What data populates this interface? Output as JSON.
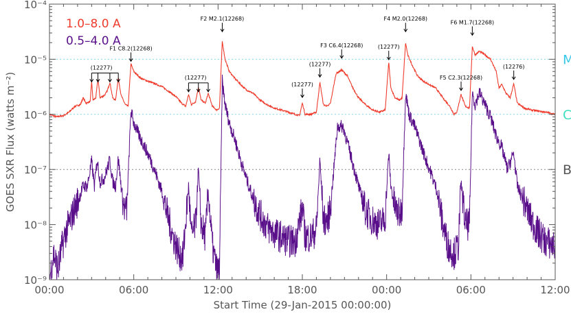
{
  "chart_data": {
    "type": "line",
    "xlabel": "Start Time (29-Jan-2015 00:00:00)",
    "ylabel": "GOES SXR Flux (watts m⁻²)",
    "x_unit": "hours since 29-Jan-2015 00:00",
    "xlim": [
      0,
      36
    ],
    "ylim": [
      1e-09,
      0.0001
    ],
    "yscale": "log",
    "x_ticks": [
      "00:00",
      "06:00",
      "12:00",
      "18:00",
      "00:00",
      "06:00",
      "12:00"
    ],
    "y_ticks": [
      "10⁻⁹",
      "10⁻⁸",
      "10⁻⁷",
      "10⁻⁶",
      "10⁻⁵",
      "10⁻⁴"
    ],
    "legend": [
      {
        "label": "1.0–8.0 A",
        "color": "#ef3b2c"
      },
      {
        "label": "0.5–4.0 A",
        "color": "#5a0f8a"
      }
    ],
    "class_levels": [
      {
        "label": "M",
        "value": 1e-05,
        "color": "#38c8e8",
        "line_color": "#7fd8ec"
      },
      {
        "label": "C",
        "value": 1e-06,
        "color": "#3fe0c0",
        "line_color": "#7fd8ec"
      },
      {
        "label": "B",
        "value": 1e-07,
        "color": "#555555",
        "line_color": "#888888"
      }
    ],
    "series": [
      {
        "name": "1.0–8.0 A",
        "color": "#ef3b2c",
        "points": [
          [
            0.0,
            1e-06
          ],
          [
            0.5,
            9e-07
          ],
          [
            1.0,
            9.5e-07
          ],
          [
            1.4,
            1.1e-06
          ],
          [
            1.8,
            1.4e-06
          ],
          [
            2.2,
            1.5e-06
          ],
          [
            2.4,
            2e-06
          ],
          [
            2.6,
            1.6e-06
          ],
          [
            2.9,
            1.7e-06
          ],
          [
            3.0,
            4e-06
          ],
          [
            3.1,
            1.8e-06
          ],
          [
            3.3,
            2e-06
          ],
          [
            3.45,
            4.5e-06
          ],
          [
            3.6,
            2e-06
          ],
          [
            3.9,
            2.2e-06
          ],
          [
            4.1,
            2.6e-06
          ],
          [
            4.3,
            3.8e-06
          ],
          [
            4.5,
            2e-06
          ],
          [
            4.7,
            1.8e-06
          ],
          [
            4.9,
            4.6e-06
          ],
          [
            5.1,
            2.2e-06
          ],
          [
            5.4,
            1.5e-06
          ],
          [
            5.6,
            1.4e-06
          ],
          [
            5.8,
            8.2e-06
          ],
          [
            6.0,
            6e-06
          ],
          [
            6.5,
            4.5e-06
          ],
          [
            7.0,
            4e-06
          ],
          [
            7.5,
            3.6e-06
          ],
          [
            8.0,
            3.2e-06
          ],
          [
            8.5,
            2.6e-06
          ],
          [
            9.0,
            2.1e-06
          ],
          [
            9.4,
            1.6e-06
          ],
          [
            9.7,
            1.4e-06
          ],
          [
            9.9,
            2.3e-06
          ],
          [
            10.1,
            1.5e-06
          ],
          [
            10.4,
            1.7e-06
          ],
          [
            10.6,
            3.1e-06
          ],
          [
            10.8,
            1.8e-06
          ],
          [
            11.1,
            1.6e-06
          ],
          [
            11.3,
            2.4e-06
          ],
          [
            11.6,
            1.4e-06
          ],
          [
            11.9,
            1.2e-06
          ],
          [
            12.1,
            1.3e-06
          ],
          [
            12.3,
            2.1e-05
          ],
          [
            12.5,
            1e-05
          ],
          [
            12.8,
            6e-06
          ],
          [
            13.2,
            4.5e-06
          ],
          [
            13.6,
            3.5e-06
          ],
          [
            14.0,
            2.8e-06
          ],
          [
            14.5,
            2.4e-06
          ],
          [
            15.0,
            1.8e-06
          ],
          [
            15.5,
            1.5e-06
          ],
          [
            16.0,
            1.3e-06
          ],
          [
            16.5,
            1.2e-06
          ],
          [
            17.0,
            1.1e-06
          ],
          [
            17.5,
            1e-06
          ],
          [
            17.8,
            9.5e-07
          ],
          [
            18.0,
            1.6e-06
          ],
          [
            18.2,
            1e-06
          ],
          [
            18.6,
            1e-06
          ],
          [
            19.0,
            1.1e-06
          ],
          [
            19.25,
            3.8e-06
          ],
          [
            19.5,
            1.5e-06
          ],
          [
            19.8,
            1.4e-06
          ],
          [
            20.0,
            1.6e-06
          ],
          [
            20.4,
            5.5e-06
          ],
          [
            20.8,
            6.4e-06
          ],
          [
            21.2,
            5e-06
          ],
          [
            21.6,
            3e-06
          ],
          [
            22.0,
            2e-06
          ],
          [
            22.5,
            1.5e-06
          ],
          [
            23.0,
            1.2e-06
          ],
          [
            23.5,
            1.1e-06
          ],
          [
            23.9,
            1.2e-06
          ],
          [
            24.15,
            9e-06
          ],
          [
            24.3,
            3e-06
          ],
          [
            24.6,
            2e-06
          ],
          [
            24.9,
            1.8e-06
          ],
          [
            25.1,
            2e-06
          ],
          [
            25.35,
            2e-05
          ],
          [
            25.5,
            1.2e-05
          ],
          [
            25.8,
            8e-06
          ],
          [
            26.2,
            5e-06
          ],
          [
            26.6,
            4e-06
          ],
          [
            27.0,
            3.5e-06
          ],
          [
            27.5,
            3e-06
          ],
          [
            28.0,
            2e-06
          ],
          [
            28.5,
            1.4e-06
          ],
          [
            28.8,
            1e-06
          ],
          [
            29.0,
            1.1e-06
          ],
          [
            29.3,
            2.3e-06
          ],
          [
            29.6,
            1.4e-06
          ],
          [
            29.9,
            1.3e-06
          ],
          [
            30.1,
            1.7e-05
          ],
          [
            30.3,
            1.2e-05
          ],
          [
            30.6,
            1.4e-05
          ],
          [
            31.0,
            1.2e-05
          ],
          [
            31.4,
            1e-05
          ],
          [
            31.8,
            6e-06
          ],
          [
            32.0,
            3e-06
          ],
          [
            32.2,
            3.5e-06
          ],
          [
            32.5,
            2.4e-06
          ],
          [
            32.8,
            2e-06
          ],
          [
            33.05,
            3.6e-06
          ],
          [
            33.3,
            1.6e-06
          ],
          [
            33.8,
            1.3e-06
          ],
          [
            34.3,
            1.2e-06
          ],
          [
            34.8,
            1.15e-06
          ],
          [
            35.3,
            1.1e-06
          ],
          [
            36.0,
            1e-06
          ]
        ]
      },
      {
        "name": "0.5–4.0 A",
        "color": "#5a0f8a",
        "points": [
          [
            0.0,
            1e-09
          ],
          [
            0.3,
            3e-09
          ],
          [
            0.6,
            1.5e-09
          ],
          [
            0.9,
            4e-09
          ],
          [
            1.2,
            8e-09
          ],
          [
            1.5,
            1.2e-08
          ],
          [
            1.8,
            2e-08
          ],
          [
            2.1,
            3e-08
          ],
          [
            2.4,
            5e-08
          ],
          [
            2.7,
            5e-08
          ],
          [
            3.0,
            1.4e-07
          ],
          [
            3.2,
            5e-08
          ],
          [
            3.4,
            1.5e-07
          ],
          [
            3.6,
            6e-08
          ],
          [
            3.9,
            7e-08
          ],
          [
            4.1,
            1e-07
          ],
          [
            4.3,
            1.5e-07
          ],
          [
            4.5,
            6e-08
          ],
          [
            4.7,
            5e-08
          ],
          [
            4.9,
            1.6e-07
          ],
          [
            5.1,
            5e-08
          ],
          [
            5.3,
            2e-08
          ],
          [
            5.5,
            1.8e-08
          ],
          [
            5.8,
            1.2e-06
          ],
          [
            6.0,
            7e-07
          ],
          [
            6.4,
            4e-07
          ],
          [
            6.8,
            2.5e-07
          ],
          [
            7.2,
            1.5e-07
          ],
          [
            7.6,
            8e-08
          ],
          [
            8.0,
            4e-08
          ],
          [
            8.4,
            1.5e-08
          ],
          [
            8.8,
            6e-09
          ],
          [
            9.2,
            3e-09
          ],
          [
            9.5,
            2.5e-09
          ],
          [
            9.9,
            5e-08
          ],
          [
            10.1,
            6e-09
          ],
          [
            10.4,
            1e-08
          ],
          [
            10.6,
            1e-07
          ],
          [
            10.8,
            1e-08
          ],
          [
            11.1,
            6e-09
          ],
          [
            11.3,
            4e-08
          ],
          [
            11.6,
            4e-09
          ],
          [
            11.9,
            1.5e-09
          ],
          [
            12.1,
            1.5e-09
          ],
          [
            12.3,
            4e-06
          ],
          [
            12.5,
            1.5e-06
          ],
          [
            12.8,
            7e-07
          ],
          [
            13.2,
            3.5e-07
          ],
          [
            13.6,
            1.5e-07
          ],
          [
            14.0,
            7e-08
          ],
          [
            14.5,
            3e-08
          ],
          [
            15.0,
            1.5e-08
          ],
          [
            15.5,
            9e-09
          ],
          [
            16.0,
            7e-09
          ],
          [
            16.5,
            6e-09
          ],
          [
            17.0,
            5e-09
          ],
          [
            17.5,
            5e-09
          ],
          [
            18.0,
            2e-08
          ],
          [
            18.2,
            6e-09
          ],
          [
            18.6,
            6e-09
          ],
          [
            19.0,
            8e-09
          ],
          [
            19.25,
            1.5e-07
          ],
          [
            19.5,
            1.2e-08
          ],
          [
            19.8,
            1.2e-08
          ],
          [
            20.0,
            2e-08
          ],
          [
            20.5,
            6e-07
          ],
          [
            20.9,
            6e-07
          ],
          [
            21.3,
            2.5e-07
          ],
          [
            21.7,
            1e-07
          ],
          [
            22.1,
            4e-08
          ],
          [
            22.5,
            1.8e-08
          ],
          [
            23.0,
            1.2e-08
          ],
          [
            23.5,
            1e-08
          ],
          [
            23.9,
            1.3e-08
          ],
          [
            24.15,
            2e-07
          ],
          [
            24.3,
            5e-08
          ],
          [
            24.6,
            2e-08
          ],
          [
            24.9,
            1.5e-08
          ],
          [
            25.1,
            2e-08
          ],
          [
            25.35,
            2.5e-06
          ],
          [
            25.6,
            1e-06
          ],
          [
            26.0,
            6e-07
          ],
          [
            26.4,
            3e-07
          ],
          [
            26.8,
            1.5e-07
          ],
          [
            27.2,
            8e-08
          ],
          [
            27.6,
            4e-08
          ],
          [
            28.0,
            1e-08
          ],
          [
            28.4,
            4e-09
          ],
          [
            28.8,
            3e-09
          ],
          [
            29.1,
            4e-09
          ],
          [
            29.3,
            6e-08
          ],
          [
            29.6,
            1e-08
          ],
          [
            29.9,
            1e-08
          ],
          [
            30.1,
            2.5e-06
          ],
          [
            30.3,
            1.5e-06
          ],
          [
            30.6,
            2.5e-06
          ],
          [
            31.0,
            1.5e-06
          ],
          [
            31.4,
            9e-07
          ],
          [
            31.8,
            4e-07
          ],
          [
            32.2,
            2.5e-07
          ],
          [
            32.6,
            1e-07
          ],
          [
            33.05,
            2e-07
          ],
          [
            33.3,
            5e-08
          ],
          [
            33.8,
            2.5e-08
          ],
          [
            34.3,
            1.2e-08
          ],
          [
            34.8,
            7e-09
          ],
          [
            35.3,
            5e-09
          ],
          [
            36.0,
            4e-09
          ]
        ]
      }
    ],
    "annotations": [
      {
        "text": "(12277)",
        "x": 3.7,
        "y": 6.5e-06,
        "arrows": [
          3.0,
          3.45,
          4.3,
          4.9
        ]
      },
      {
        "text": "F1 C8.2(12268)",
        "x": 5.8,
        "y": 1.45e-05,
        "arrows": [
          5.8
        ]
      },
      {
        "text": "(12277)",
        "x": 10.4,
        "y": 4.3e-06,
        "arrows": [
          9.9,
          10.6,
          11.3
        ]
      },
      {
        "text": "F2 M2.1(12268)",
        "x": 12.3,
        "y": 5e-05,
        "arrows": [
          12.3
        ]
      },
      {
        "text": "(12277)",
        "x": 18.0,
        "y": 3.2e-06,
        "arrows": [
          18.0
        ]
      },
      {
        "text": "(12277)",
        "x": 19.25,
        "y": 7.5e-06,
        "arrows": [
          19.25
        ]
      },
      {
        "text": "F3 C6.4(12268)",
        "x": 20.8,
        "y": 1.65e-05,
        "arrows": [
          20.8
        ]
      },
      {
        "text": "(12277)",
        "x": 24.15,
        "y": 1.55e-05,
        "arrows": [
          24.15
        ]
      },
      {
        "text": "F4 M2.0(12268)",
        "x": 25.35,
        "y": 5e-05,
        "arrows": [
          25.35
        ]
      },
      {
        "text": "F5 C2.3(12268)",
        "x": 29.3,
        "y": 4.3e-06,
        "arrows": [
          29.3
        ]
      },
      {
        "text": "F6 M1.7(12268)",
        "x": 30.1,
        "y": 4.3e-05,
        "arrows": [
          30.1
        ]
      },
      {
        "text": "(12276)",
        "x": 33.05,
        "y": 6.8e-06,
        "arrows": [
          33.05
        ]
      }
    ]
  }
}
